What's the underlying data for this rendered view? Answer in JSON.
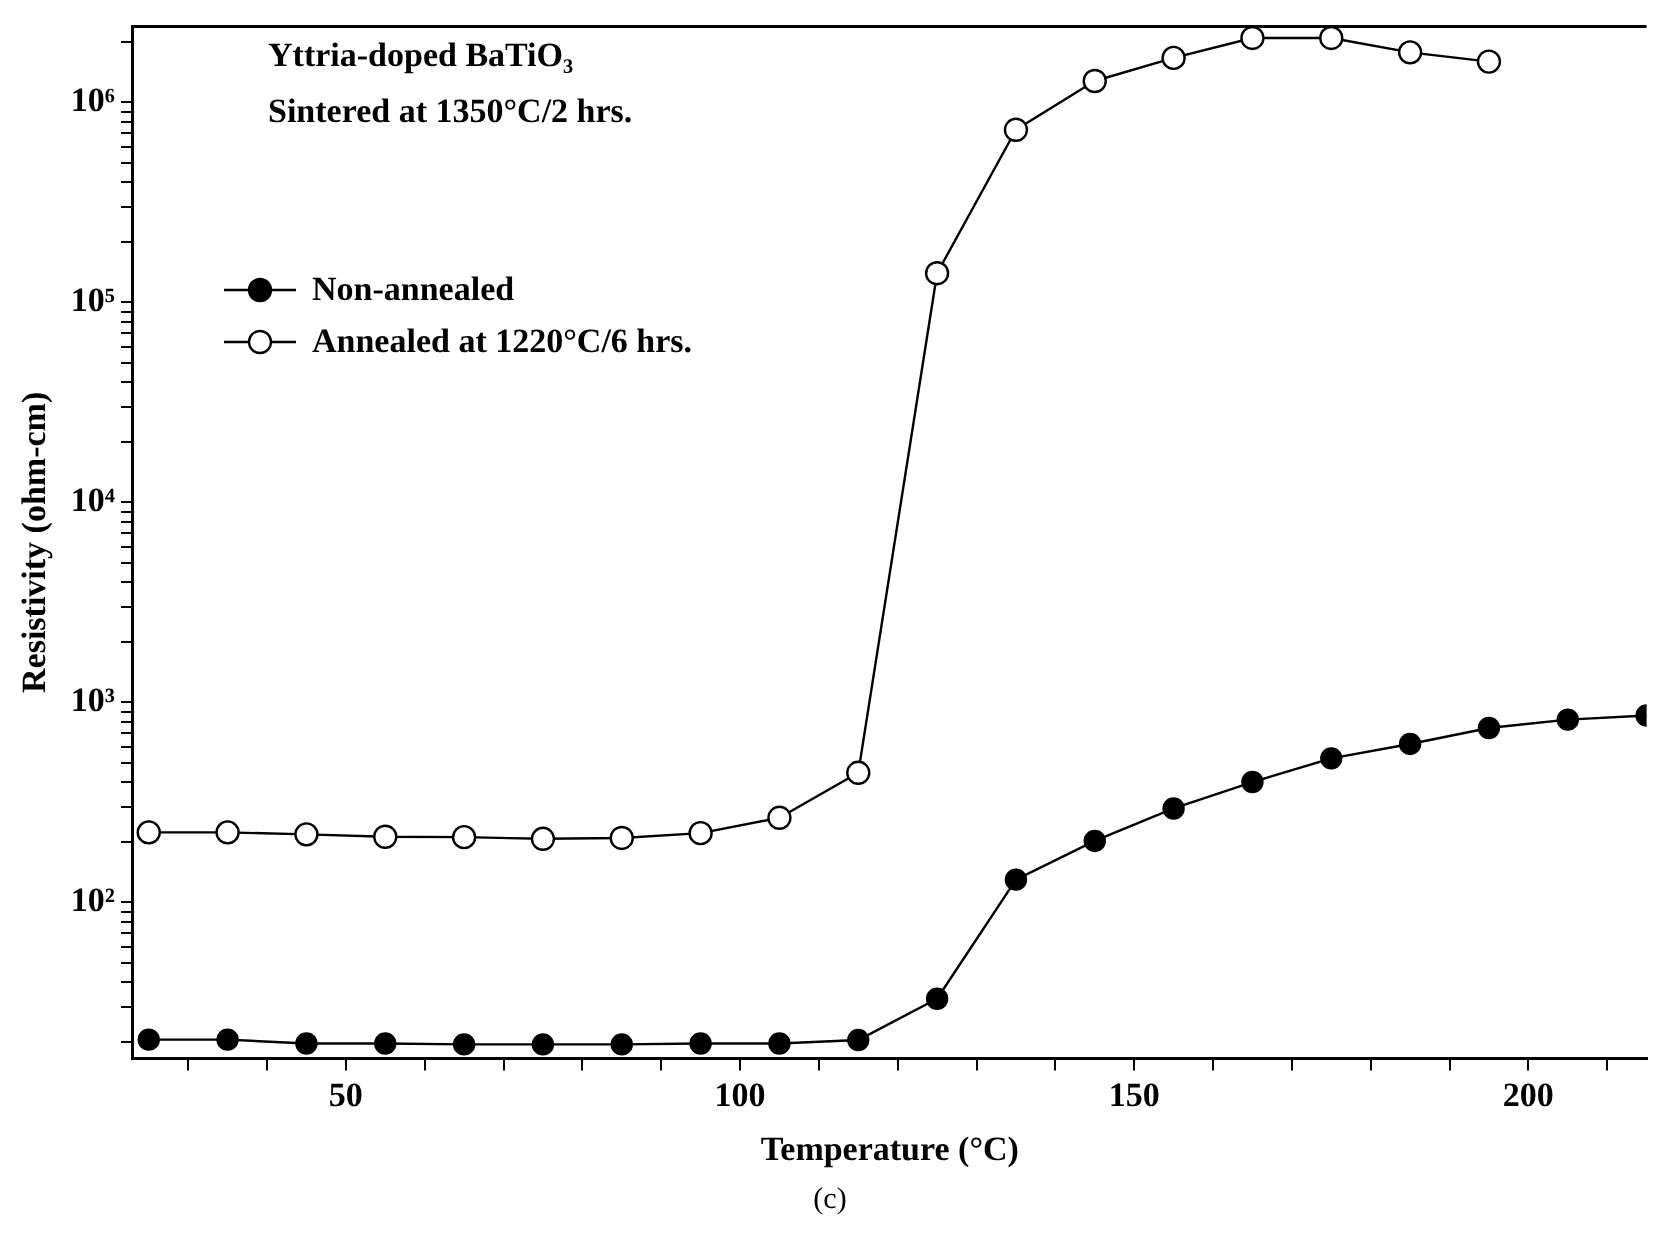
{
  "chart_data": {
    "type": "line",
    "title": "Yttria-doped BaTiO₃",
    "subtitle": "Sintered at 1350°C/2 hrs.",
    "xlabel": "Temperature (°C)",
    "ylabel": "Resistivity (ohm-cm)",
    "annotations": [
      "(c)"
    ],
    "x": [
      25,
      35,
      45,
      55,
      65,
      75,
      85,
      95,
      105,
      115,
      125,
      135,
      145,
      155,
      165,
      175,
      185,
      195,
      205,
      215
    ],
    "series": [
      {
        "name": "Non-annealed",
        "color": "#000000",
        "marker": "circle",
        "values": [
          20.6,
          20.6,
          19.7,
          19.7,
          19.5,
          19.5,
          19.5,
          19.7,
          19.7,
          20.5,
          33,
          130,
          203,
          295,
          400,
          525,
          620,
          745,
          820,
          860
        ]
      },
      {
        "name": "Annealed at 1220°C/6 hrs.",
        "color": "#000000",
        "marker": "open circle",
        "values": [
          224,
          224,
          219,
          213,
          212,
          208,
          210,
          222,
          265,
          445,
          140000,
          730000,
          1280000,
          1670000,
          2100000,
          2100000,
          1780000,
          1600000,
          null,
          null
        ]
      }
    ],
    "log": "y",
    "grid": false,
    "legend": "left",
    "line_style": "solid",
    "xlim": [
      23,
      215
    ],
    "xticks": [
      {
        "value": 30,
        "label": null
      },
      {
        "value": 40,
        "label": null
      },
      50,
      {
        "value": 60,
        "label": null
      },
      {
        "value": 70,
        "label": null
      },
      {
        "value": 80,
        "label": null
      },
      {
        "value": 90,
        "label": null
      },
      100,
      {
        "value": 110,
        "label": null
      },
      {
        "value": 120,
        "label": null
      },
      {
        "value": 130,
        "label": null
      },
      {
        "value": 140,
        "label": null
      },
      150,
      {
        "value": 160,
        "label": null
      },
      {
        "value": 170,
        "label": null
      },
      {
        "value": 180,
        "label": null
      },
      {
        "value": 190,
        "label": null
      },
      200,
      {
        "value": 210,
        "label": null
      }
    ],
    "ylim": [
      16.6,
      2400000
    ],
    "yticks": [
      {
        "value": 20,
        "label": null
      },
      {
        "value": 30,
        "label": null
      },
      {
        "value": 40,
        "label": null
      },
      {
        "value": 50,
        "label": null
      },
      {
        "value": 60,
        "label": null
      },
      {
        "value": 70,
        "label": null
      },
      {
        "value": 80,
        "label": null
      },
      {
        "value": 90,
        "label": null
      },
      {
        "value": 100,
        "label": "10²"
      },
      {
        "value": 200,
        "label": null
      },
      {
        "value": 300,
        "label": null
      },
      {
        "value": 400,
        "label": null
      },
      {
        "value": 500,
        "label": null
      },
      {
        "value": 600,
        "label": null
      },
      {
        "value": 700,
        "label": null
      },
      {
        "value": 800,
        "label": null
      },
      {
        "value": 900,
        "label": null
      },
      {
        "value": 1000,
        "label": "10³"
      },
      {
        "value": 2000,
        "label": null
      },
      {
        "value": 3000,
        "label": null
      },
      {
        "value": 4000,
        "label": null
      },
      {
        "value": 5000,
        "label": null
      },
      {
        "value": 6000,
        "label": null
      },
      {
        "value": 7000,
        "label": null
      },
      {
        "value": 8000,
        "label": null
      },
      {
        "value": 9000,
        "label": null
      },
      {
        "value": 10000,
        "label": "10⁴"
      },
      {
        "value": 20000,
        "label": null
      },
      {
        "value": 30000,
        "label": null
      },
      {
        "value": 40000,
        "label": null
      },
      {
        "value": 50000,
        "label": null
      },
      {
        "value": 60000,
        "label": null
      },
      {
        "value": 70000,
        "label": null
      },
      {
        "value": 80000,
        "label": null
      },
      {
        "value": 90000,
        "label": null
      },
      {
        "value": 100000,
        "label": "10⁵"
      },
      {
        "value": 200000,
        "label": null
      },
      {
        "value": 300000,
        "label": null
      },
      {
        "value": 400000,
        "label": null
      },
      {
        "value": 500000,
        "label": null
      },
      {
        "value": 600000,
        "label": null
      },
      {
        "value": 700000,
        "label": null
      },
      {
        "value": 800000,
        "label": null
      },
      {
        "value": 900000,
        "label": null
      },
      {
        "value": 1000000,
        "label": "10⁶"
      },
      {
        "value": 2000000,
        "label": null
      }
    ]
  }
}
